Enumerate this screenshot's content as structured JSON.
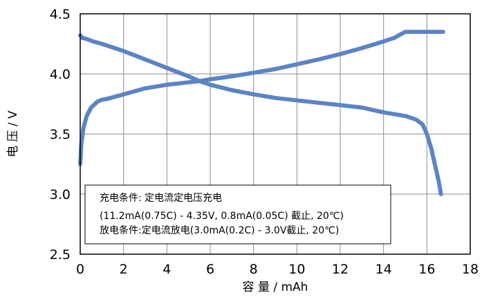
{
  "chart_data": {
    "type": "line",
    "xlabel": "容 量 / mAh",
    "ylabel": "电 压 / V",
    "xlim": [
      0,
      18
    ],
    "ylim": [
      2.5,
      4.5
    ],
    "xticks": [
      0,
      2,
      4,
      6,
      8,
      10,
      12,
      14,
      16,
      18
    ],
    "yticks": [
      2.5,
      3.0,
      3.5,
      4.0,
      4.5
    ],
    "ytick_labels": [
      "2.5",
      "3.0",
      "3.5",
      "4.0",
      "4.5"
    ],
    "grid": true,
    "line_color": "#5b84c4",
    "series": [
      {
        "x": [
          0.0,
          0.05,
          0.15,
          0.3,
          0.5,
          0.8,
          1.0,
          1.3,
          2.0,
          3.0,
          4.0,
          5.0,
          5.5,
          6.0,
          7.0,
          8.0,
          9.0,
          10.0,
          11.0,
          12.0,
          13.0,
          14.0,
          14.5,
          15.0,
          15.5,
          16.0,
          16.5,
          16.75
        ],
        "y": [
          3.25,
          3.42,
          3.55,
          3.65,
          3.72,
          3.77,
          3.785,
          3.795,
          3.83,
          3.88,
          3.91,
          3.93,
          3.94,
          3.955,
          3.98,
          4.01,
          4.04,
          4.08,
          4.12,
          4.165,
          4.215,
          4.27,
          4.3,
          4.35,
          4.35,
          4.35,
          4.35,
          4.35
        ]
      },
      {
        "x": [
          0.0,
          0.1,
          0.3,
          0.6,
          1.0,
          2.0,
          3.0,
          4.0,
          5.0,
          5.5,
          6.0,
          7.0,
          8.0,
          9.0,
          10.0,
          11.0,
          12.0,
          13.0,
          14.0,
          15.0,
          15.5,
          15.8,
          16.0,
          16.2,
          16.4,
          16.55,
          16.65
        ],
        "y": [
          4.32,
          4.3,
          4.29,
          4.27,
          4.25,
          4.19,
          4.12,
          4.05,
          3.98,
          3.94,
          3.91,
          3.865,
          3.83,
          3.8,
          3.78,
          3.76,
          3.74,
          3.72,
          3.68,
          3.65,
          3.62,
          3.58,
          3.5,
          3.38,
          3.22,
          3.1,
          3.0
        ]
      }
    ],
    "annotation": {
      "lines": [
        "充电条件: 定电流定电压充电",
        "(11.2mA(0.75C) - 4.35V, 0.8mA(0.05C) 截止, 20℃)",
        "放电条件:定电流放电(3.0mA(0.2C) - 3.0V截止, 20℃)"
      ]
    }
  }
}
